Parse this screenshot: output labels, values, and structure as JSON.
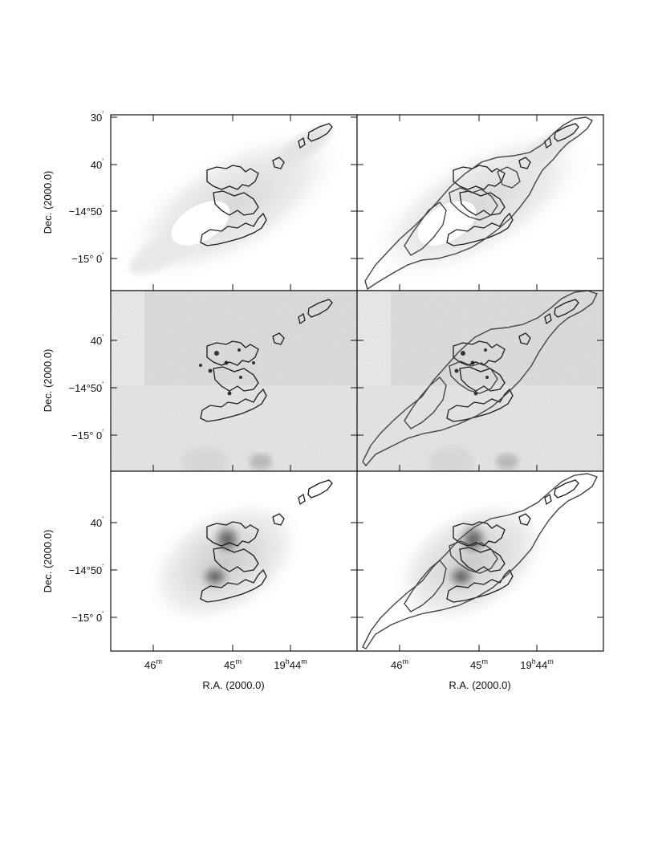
{
  "figure": {
    "dec_axis_label": "Dec. (2000.0)",
    "ra_axis_label": "R.A. (2000.0)",
    "dec_ticks": [
      {
        "text": "30",
        "sup": "'"
      },
      {
        "text": "40",
        "sup": "'"
      },
      {
        "text": "−14°50",
        "sup": "'"
      },
      {
        "text": "−15° 0",
        "sup": "'"
      }
    ],
    "dec_ticks_lower": [
      {
        "text": "40",
        "sup": "'"
      },
      {
        "text": "−14°50",
        "sup": "'"
      },
      {
        "text": "−15° 0",
        "sup": "'"
      }
    ],
    "ra_ticks": [
      {
        "text": "46",
        "sup": "m"
      },
      {
        "text": "45",
        "sup": "m"
      },
      {
        "text": "19",
        "sup": "h",
        "text2": "44",
        "sup2": "m"
      }
    ],
    "rows": 3,
    "cols": 2,
    "contour_sets": [
      "inner",
      "outer"
    ]
  }
}
